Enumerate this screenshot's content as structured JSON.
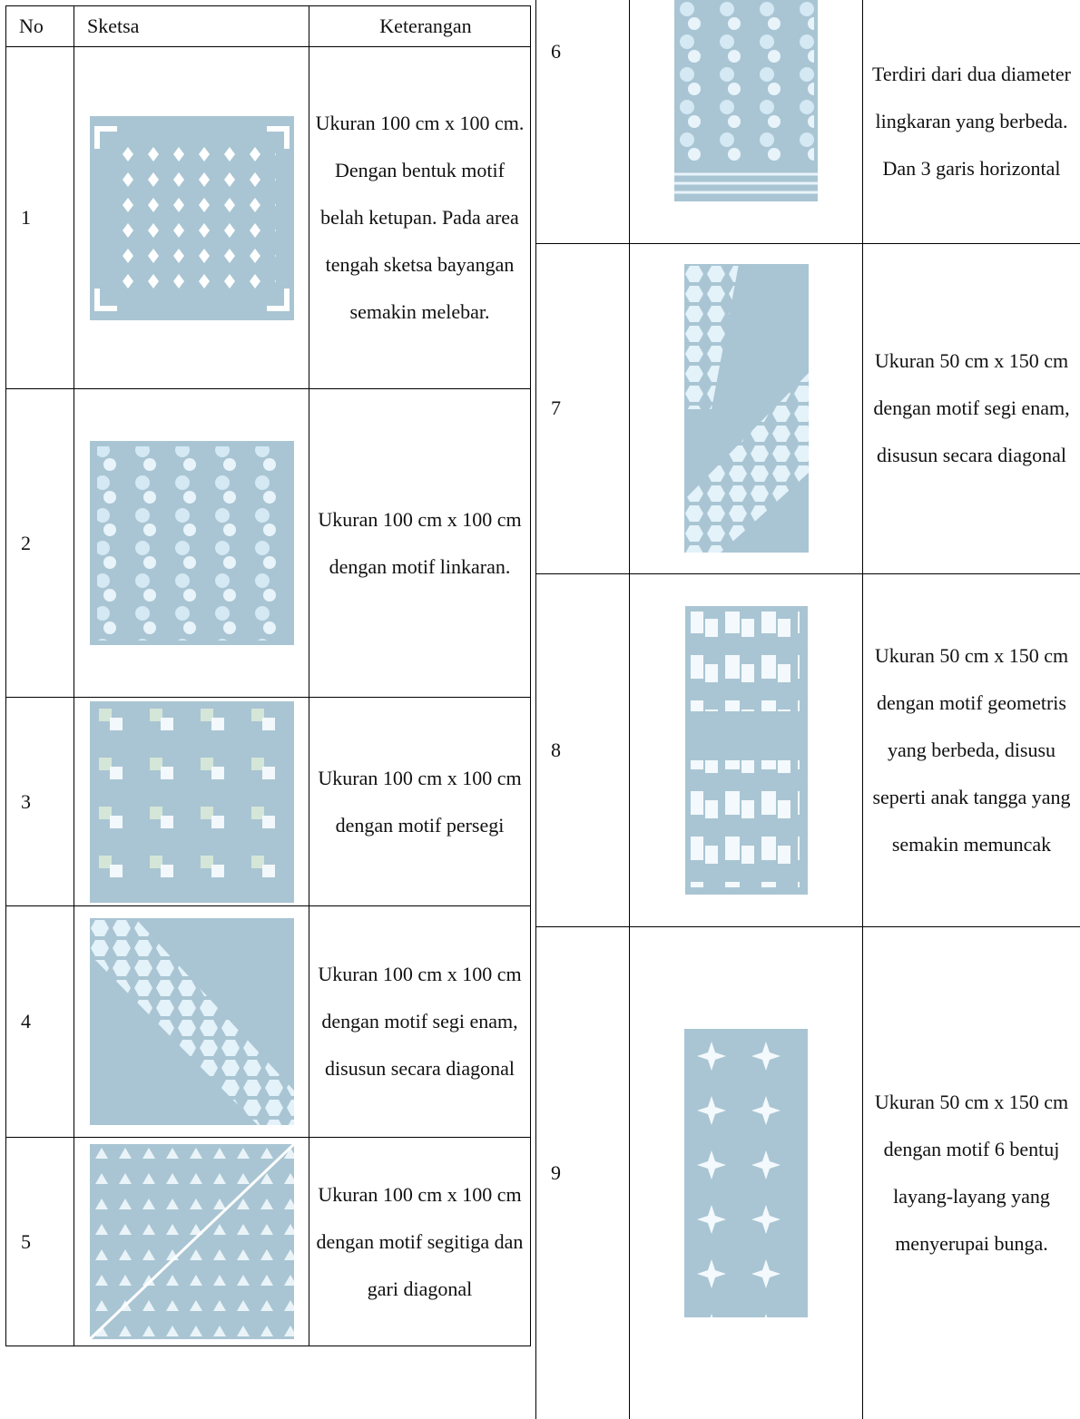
{
  "left_table": {
    "headers": [
      "No",
      "Sketsa",
      "Keterangan"
    ],
    "rows": [
      [
        "1",
        "Ukuran 100 cm x 100 cm. Dengan bentuk motif belah ketupan. Pada area tengah sketsa bayangan semakin melebar."
      ],
      [
        "2",
        "Ukuran 100 cm x 100 cm dengan motif linkaran."
      ],
      [
        "3",
        "Ukuran 100 cm x 100 cm dengan motif persegi"
      ],
      [
        "4",
        "Ukuran 100 cm x 100 cm dengan motif segi enam, disusun secara diagonal"
      ],
      [
        "5",
        "Ukuran 100 cm x 100 cm dengan motif segitiga dan gari diagonal"
      ]
    ]
  },
  "right_table": {
    "rows": [
      [
        "6",
        "Terdiri dari dua diameter lingkaran yang berbeda. Dan 3 garis horizontal"
      ],
      [
        "7",
        "Ukuran 50 cm x 150 cm dengan motif segi enam, disusun secara diagonal"
      ],
      [
        "8",
        "Ukuran 50 cm x 150 cm dengan motif geometris yang berbeda, disusu seperti anak tangga yang semakin memuncak"
      ],
      [
        "9",
        "Ukuran 50 cm x 150 cm dengan motif 6 bentuj layang-layang yang menyerupai bunga."
      ]
    ]
  }
}
